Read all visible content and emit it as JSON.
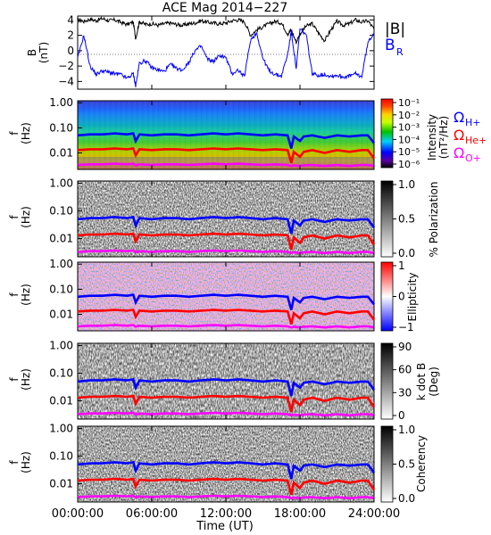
{
  "chart_data": [
    {
      "type": "line",
      "title": "ACE Mag 2014−227",
      "ylabel": "B",
      "yunit": "(nT)",
      "ylim": [
        -5,
        4.5
      ],
      "yticks": [
        "4",
        "2",
        "0",
        "−2",
        "−4"
      ],
      "ytick_values": [
        4,
        2,
        0,
        -2,
        -4
      ],
      "x_hours": [
        0,
        0.5,
        1,
        1.5,
        2,
        2.5,
        3,
        3.5,
        4,
        4.5,
        4.7,
        5,
        5.5,
        6,
        6.5,
        7,
        7.5,
        8,
        8.5,
        9,
        9.5,
        10,
        10.5,
        11,
        11.5,
        12,
        12.5,
        13,
        13.5,
        14,
        14.5,
        15,
        15.5,
        16,
        16.5,
        17,
        17.3,
        17.7,
        18,
        18.5,
        19,
        19.5,
        20,
        20.5,
        21,
        21.5,
        22,
        22.5,
        23,
        23.5,
        24
      ],
      "series": [
        {
          "name": "|B|",
          "color": "#000000",
          "values": [
            4.0,
            3.8,
            4.1,
            3.9,
            4.2,
            3.9,
            4.0,
            3.7,
            3.4,
            3.7,
            1.6,
            3.8,
            3.4,
            3.5,
            3.3,
            3.5,
            3.6,
            3.4,
            3.3,
            3.5,
            3.6,
            3.9,
            3.7,
            3.6,
            3.5,
            3.6,
            3.9,
            4.0,
            3.8,
            2.0,
            2.7,
            3.1,
            3.5,
            3.8,
            3.6,
            2.2,
            2.7,
            1.1,
            2.2,
            3.2,
            3.5,
            2.3,
            1.3,
            2.7,
            3.8,
            3.3,
            3.5,
            4.0,
            3.7,
            3.9,
            2.8
          ]
        },
        {
          "name": "B",
          "subscript": "R",
          "color": "#0000ff",
          "values": [
            -1.0,
            2.0,
            -2.0,
            -3.1,
            -2.6,
            -2.8,
            -3.0,
            -3.1,
            -3.6,
            -3.0,
            -4.6,
            -1.6,
            -1.3,
            -2.2,
            -2.5,
            -2.7,
            -1.8,
            -2.3,
            -2.5,
            -1.5,
            0.0,
            0.6,
            -1.1,
            -1.4,
            -0.6,
            -0.9,
            -3.0,
            -2.5,
            -3.4,
            1.4,
            2.3,
            -1.0,
            -2.6,
            -3.1,
            -3.3,
            -0.5,
            2.5,
            -2.3,
            2.8,
            2.1,
            -3.0,
            -3.2,
            -3.1,
            -3.3,
            -3.2,
            -3.4,
            -3.3,
            -3.0,
            -3.4,
            1.0,
            2.4
          ]
        }
      ]
    },
    {
      "type": "heatmap",
      "ylabel": "f",
      "yunit": "(Hz)",
      "yscale": "log",
      "yticks": [
        "1.00",
        "0.10",
        "0.01"
      ],
      "colorbar": {
        "label": "Intensity",
        "unit": "(nT²/Hz)",
        "scale": "log",
        "ticks": [
          "10⁻¹",
          "10⁻²",
          "10⁻³",
          "10⁻⁴",
          "10⁻⁵",
          "10⁻⁶"
        ]
      },
      "cyclotron_lines": [
        {
          "label": "Ω",
          "sub": "H+",
          "color": "#0000ff"
        },
        {
          "label": "Ω",
          "sub": "He+",
          "color": "#ff0000"
        },
        {
          "label": "Ω",
          "sub": "O+",
          "color": "#ff00ff"
        }
      ]
    },
    {
      "type": "heatmap",
      "ylabel": "f",
      "yunit": "(Hz)",
      "yscale": "log",
      "yticks": [
        "1.00",
        "0.10",
        "0.01"
      ],
      "colorbar": {
        "label": "% Polarization",
        "ticks": [
          "1.0",
          "0.5",
          "0.0"
        ]
      }
    },
    {
      "type": "heatmap",
      "ylabel": "f",
      "yunit": "(Hz)",
      "yscale": "log",
      "yticks": [
        "1.00",
        "0.10",
        "0.01"
      ],
      "colorbar": {
        "label": "Ellipticity",
        "ticks": [
          "1",
          "0",
          "−1"
        ]
      }
    },
    {
      "type": "heatmap",
      "ylabel": "f",
      "yunit": "(Hz)",
      "yscale": "log",
      "yticks": [
        "1.00",
        "0.10",
        "0.01"
      ],
      "colorbar": {
        "label": "k dot B",
        "unit": "(Deg)",
        "ticks": [
          "90",
          "60",
          "30",
          "0"
        ]
      }
    },
    {
      "type": "heatmap",
      "ylabel": "f",
      "yunit": "(Hz)",
      "yscale": "log",
      "yticks": [
        "1.00",
        "0.10",
        "0.01"
      ],
      "colorbar": {
        "label": "Coherency",
        "ticks": [
          "1.0",
          "0.5",
          "0.0"
        ]
      }
    }
  ],
  "x_axis": {
    "label": "Time (UT)",
    "ticks": [
      "00:00:00",
      "06:00:00",
      "12:00:00",
      "18:00:00",
      "24:00:00"
    ],
    "range_hours": [
      0,
      24
    ]
  },
  "frequency_lines_hz": {
    "x_hours": [
      0,
      1,
      2,
      3,
      4,
      4.5,
      4.7,
      5,
      6,
      7,
      8,
      9,
      10,
      11,
      12,
      13,
      14,
      15,
      16,
      17,
      17.3,
      17.5,
      18,
      18.3,
      19,
      20,
      21,
      22,
      23,
      23.5,
      24
    ],
    "H": [
      0.05,
      0.055,
      0.055,
      0.06,
      0.055,
      0.06,
      0.03,
      0.055,
      0.05,
      0.055,
      0.055,
      0.05,
      0.055,
      0.06,
      0.055,
      0.06,
      0.055,
      0.05,
      0.055,
      0.05,
      0.015,
      0.045,
      0.03,
      0.045,
      0.05,
      0.04,
      0.05,
      0.045,
      0.05,
      0.05,
      0.025
    ],
    "He": [
      0.013,
      0.014,
      0.014,
      0.015,
      0.014,
      0.015,
      0.008,
      0.014,
      0.013,
      0.014,
      0.014,
      0.013,
      0.014,
      0.015,
      0.014,
      0.015,
      0.014,
      0.013,
      0.014,
      0.013,
      0.004,
      0.011,
      0.007,
      0.011,
      0.013,
      0.01,
      0.013,
      0.011,
      0.013,
      0.013,
      0.006
    ],
    "O": [
      0.0033,
      0.0035,
      0.0035,
      0.0037,
      0.0035,
      0.0037,
      0.0032,
      0.0035,
      0.0033,
      0.0035,
      0.0035,
      0.0033,
      0.0035,
      0.0037,
      0.0035,
      0.0037,
      0.0035,
      0.0033,
      0.0035,
      0.0033,
      0.003,
      0.0032,
      0.003,
      0.0032,
      0.0033,
      0.003,
      0.0033,
      0.003,
      0.0033,
      0.0033,
      0.003
    ]
  }
}
